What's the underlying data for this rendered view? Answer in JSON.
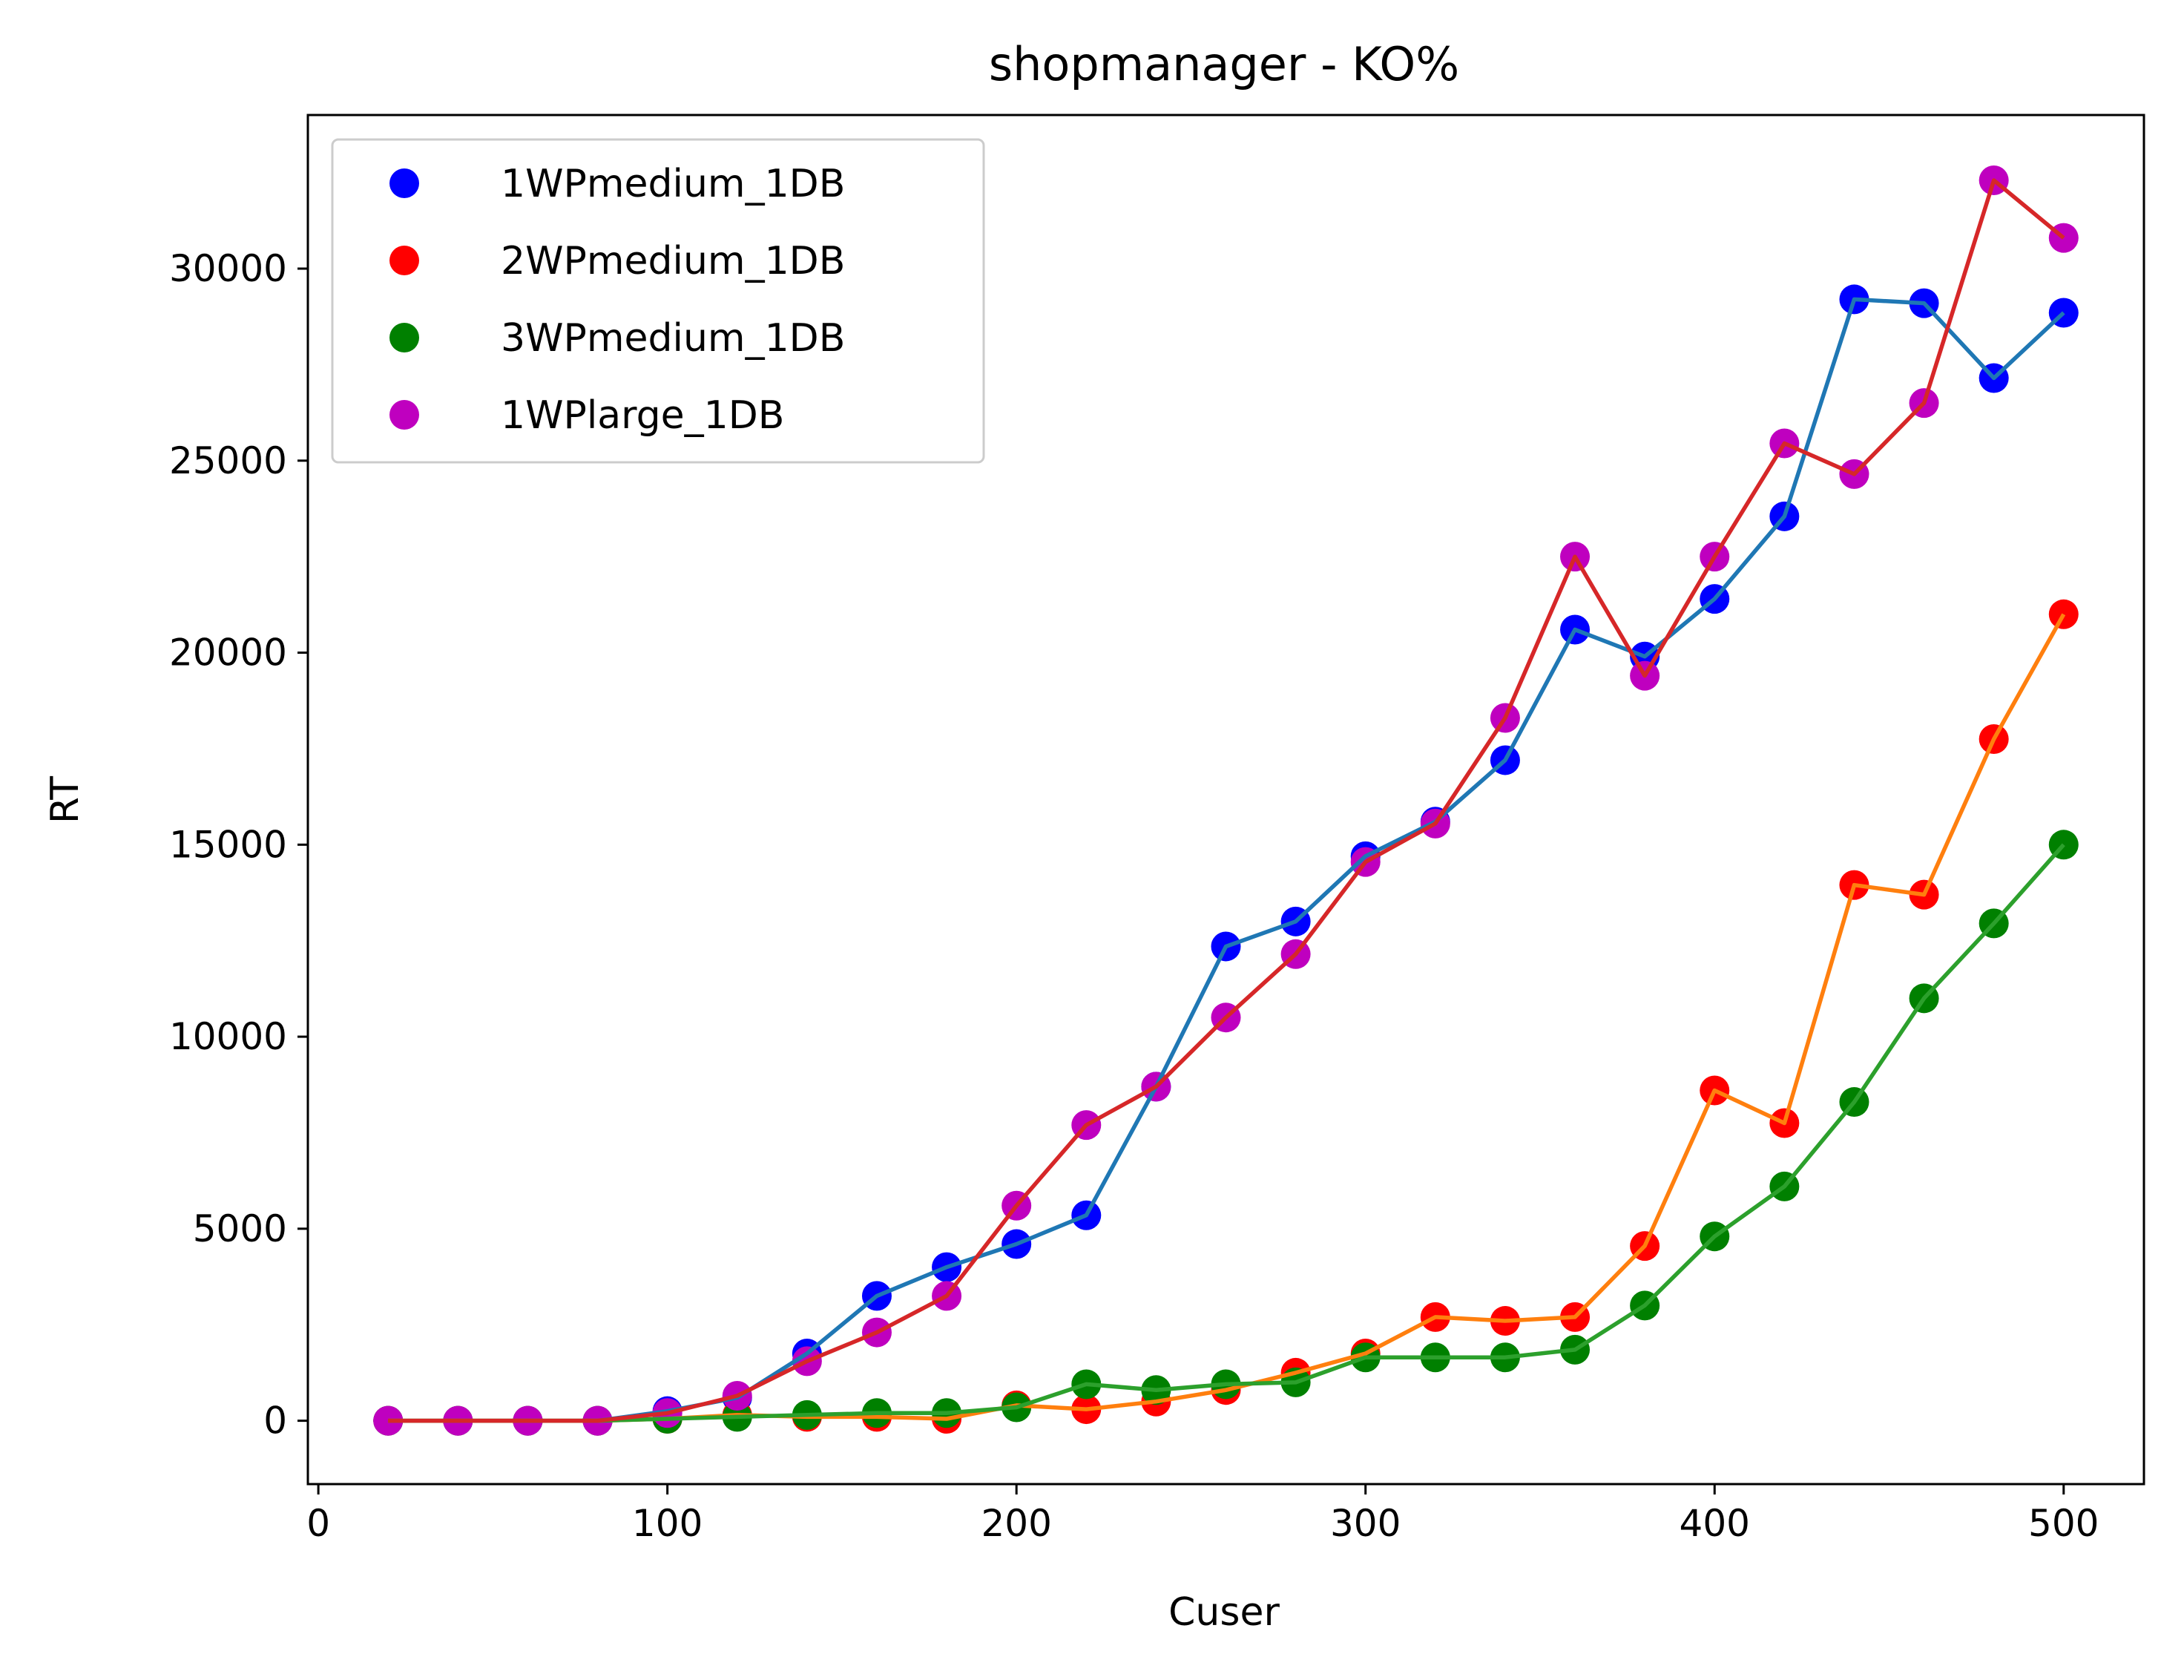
{
  "chart_data": {
    "type": "line",
    "title": "shopmanager - KO%",
    "xlabel": "Cuser",
    "ylabel": "RT",
    "xlim": [
      -3,
      523
    ],
    "ylim": [
      -1650,
      34000
    ],
    "xticks": [
      0,
      100,
      200,
      300,
      400,
      500
    ],
    "yticks": [
      0,
      5000,
      10000,
      15000,
      20000,
      25000,
      30000
    ],
    "grid": false,
    "legend_position": "upper-left",
    "x": [
      20,
      40,
      60,
      80,
      100,
      120,
      140,
      160,
      180,
      200,
      220,
      240,
      260,
      280,
      300,
      320,
      340,
      360,
      380,
      400,
      420,
      440,
      460,
      480,
      500
    ],
    "series": [
      {
        "name": "1WPmedium_1DB",
        "marker_color": "#0000ff",
        "line_color": "#1f77b4",
        "values": [
          0,
          0,
          0,
          0,
          250,
          600,
          1750,
          3250,
          4000,
          4600,
          5350,
          8700,
          12350,
          13000,
          14700,
          15600,
          17200,
          20600,
          19900,
          21400,
          23550,
          29200,
          29100,
          27150,
          28850
        ]
      },
      {
        "name": "2WPmedium_1DB",
        "marker_color": "#ff0000",
        "line_color": "#ff7f0e",
        "values": [
          0,
          0,
          0,
          0,
          50,
          150,
          100,
          100,
          50,
          400,
          300,
          500,
          800,
          1250,
          1750,
          2700,
          2600,
          2700,
          4550,
          8600,
          7750,
          13950,
          13700,
          17750,
          21000
        ]
      },
      {
        "name": "3WPmedium_1DB",
        "marker_color": "#008000",
        "line_color": "#2ca02c",
        "values": [
          0,
          0,
          0,
          0,
          50,
          100,
          150,
          200,
          200,
          350,
          950,
          800,
          950,
          1000,
          1650,
          1650,
          1650,
          1850,
          3000,
          4800,
          6100,
          8300,
          11000,
          12950,
          15000
        ]
      },
      {
        "name": "1WPlarge_1DB",
        "marker_color": "#bf00bf",
        "line_color": "#d62728",
        "values": [
          0,
          0,
          0,
          0,
          200,
          650,
          1550,
          2300,
          3250,
          5600,
          7700,
          8700,
          10500,
          12150,
          14550,
          15550,
          18300,
          22500,
          19400,
          22500,
          25450,
          24650,
          26500,
          32300,
          30800
        ]
      }
    ]
  }
}
